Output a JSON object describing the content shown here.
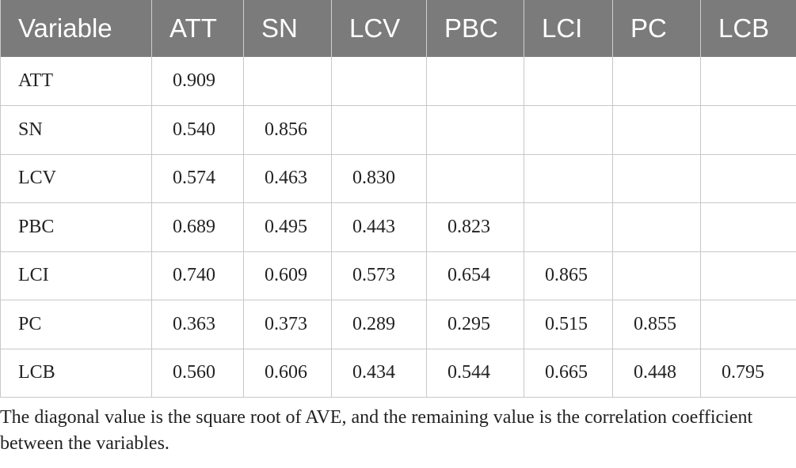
{
  "table": {
    "headers": [
      "Variable",
      "ATT",
      "SN",
      "LCV",
      "PBC",
      "LCI",
      "PC",
      "LCB"
    ],
    "rows": [
      [
        "ATT",
        "0.909",
        "",
        "",
        "",
        "",
        "",
        ""
      ],
      [
        "SN",
        "0.540",
        "0.856",
        "",
        "",
        "",
        "",
        ""
      ],
      [
        "LCV",
        "0.574",
        "0.463",
        "0.830",
        "",
        "",
        "",
        ""
      ],
      [
        "PBC",
        "0.689",
        "0.495",
        "0.443",
        "0.823",
        "",
        "",
        ""
      ],
      [
        "LCI",
        "0.740",
        "0.609",
        "0.573",
        "0.654",
        "0.865",
        "",
        ""
      ],
      [
        "PC",
        "0.363",
        "0.373",
        "0.289",
        "0.295",
        "0.515",
        "0.855",
        ""
      ],
      [
        "LCB",
        "0.560",
        "0.606",
        "0.434",
        "0.544",
        "0.665",
        "0.448",
        "0.795"
      ]
    ]
  },
  "footnote": "The diagonal value is the square root of AVE, and the remaining value is the correlation coefficient between the variables.",
  "colors": {
    "header_background": "#7b7b7b",
    "header_text": "#ffffff",
    "grid_lines": "#c8c8c8",
    "body_text": "#222222"
  }
}
